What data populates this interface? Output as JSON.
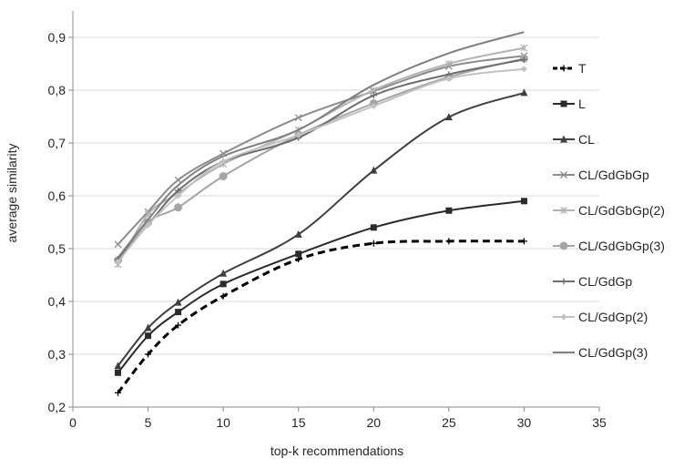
{
  "chart_data": {
    "type": "line",
    "title": "",
    "xlabel": "top-k recommendations",
    "ylabel": "average similarity",
    "xlim": [
      0,
      35
    ],
    "ylim": [
      0.2,
      0.95
    ],
    "xticks": [
      0,
      5,
      10,
      15,
      20,
      25,
      30,
      35
    ],
    "yticks": [
      0.2,
      0.3,
      0.4,
      0.5,
      0.6,
      0.7,
      0.8,
      0.9
    ],
    "xtick_labels": [
      "0",
      "5",
      "10",
      "15",
      "20",
      "25",
      "30",
      "35"
    ],
    "ytick_labels": [
      "0,2",
      "0,3",
      "0,4",
      "0,5",
      "0,6",
      "0,7",
      "0,8",
      "0,9"
    ],
    "grid": "horizontal",
    "legend_position": "right",
    "x": [
      3,
      5,
      7,
      10,
      15,
      20,
      25,
      30
    ],
    "series": [
      {
        "name": "T",
        "values": [
          0.227,
          0.3,
          0.355,
          0.41,
          0.48,
          0.51,
          0.514,
          0.514
        ],
        "color": "#000000",
        "marker": "plus",
        "dashed": true
      },
      {
        "name": "L",
        "values": [
          0.265,
          0.335,
          0.38,
          0.433,
          0.49,
          0.54,
          0.572,
          0.59
        ],
        "color": "#2b2b2b",
        "marker": "square",
        "dashed": false
      },
      {
        "name": "CL",
        "values": [
          0.278,
          0.35,
          0.398,
          0.453,
          0.527,
          0.648,
          0.749,
          0.795
        ],
        "color": "#3f3f3f",
        "marker": "triangle",
        "dashed": false
      },
      {
        "name": "CL/GdGbGp",
        "values": [
          0.508,
          0.57,
          0.63,
          0.68,
          0.748,
          0.798,
          0.845,
          0.865
        ],
        "color": "#8c8c8c",
        "marker": "x",
        "dashed": false
      },
      {
        "name": "CL/GdGbGp(2)",
        "values": [
          0.47,
          0.565,
          0.605,
          0.66,
          0.725,
          0.8,
          0.85,
          0.88
        ],
        "color": "#b3b3b3",
        "marker": "asterisk",
        "dashed": false
      },
      {
        "name": "CL/GdGbGp(3)",
        "values": [
          0.478,
          0.55,
          0.578,
          0.637,
          0.715,
          0.775,
          0.825,
          0.86
        ],
        "color": "#a6a6a6",
        "marker": "circle",
        "dashed": false
      },
      {
        "name": "CL/GdGp",
        "values": [
          0.48,
          0.545,
          0.61,
          0.665,
          0.71,
          0.79,
          0.83,
          0.858
        ],
        "color": "#6e6e6e",
        "marker": "plus",
        "dashed": false
      },
      {
        "name": "CL/GdGp(2)",
        "values": [
          0.475,
          0.545,
          0.6,
          0.665,
          0.715,
          0.77,
          0.822,
          0.84
        ],
        "color": "#c2c2c2",
        "marker": "diamond",
        "dashed": false
      },
      {
        "name": "CL/GdGp(3)",
        "values": [
          0.483,
          0.555,
          0.62,
          0.675,
          0.725,
          0.81,
          0.87,
          0.91
        ],
        "color": "#7f7f7f",
        "marker": "none",
        "dashed": false
      }
    ]
  }
}
